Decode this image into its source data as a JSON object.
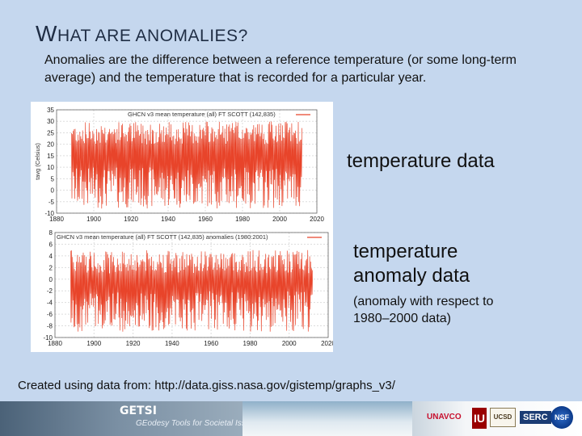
{
  "title": {
    "first_letter": "W",
    "rest": "HAT ARE ANOMALIES?"
  },
  "intro": "Anomalies are the difference between a reference temperature (or some long-term average) and the temperature that is recorded for a particular year.",
  "labels": {
    "temperature_data": "temperature data",
    "anomaly_line1": "temperature",
    "anomaly_line2": "anomaly data",
    "anomaly_note": "(anomaly with respect to 1980–2000 data)"
  },
  "credit": "Created using data from: http://data.giss.nasa.gov/gistemp/graphs_v3/",
  "footer": {
    "brand": "GETSI",
    "tagline": "GEodesy Tools for Societal Issues",
    "logos": [
      "UNAVCO",
      "IU",
      "UCSD",
      "SERC",
      "NSF"
    ]
  },
  "colors": {
    "background": "#c5d7ee",
    "series": "#e8442a",
    "title": "#1f2d44"
  },
  "chart_data": [
    {
      "type": "line",
      "title": "GHCN v3 mean temperature (all) FT SCOTT (142,835)",
      "ylabel": "tavg (Celsius)",
      "xlabel": "",
      "xlim": [
        1880,
        2020
      ],
      "ylim": [
        -10,
        35
      ],
      "xticks": [
        1880,
        1900,
        1920,
        1940,
        1960,
        1980,
        2000,
        2020
      ],
      "yticks": [
        -10,
        -5,
        0,
        5,
        10,
        15,
        20,
        25,
        30,
        35
      ],
      "grid": true,
      "series": [
        {
          "name": "",
          "x_range": [
            1888,
            2012
          ],
          "envelope_min": [
            -8,
            10
          ],
          "envelope_max": [
            20,
            30
          ]
        }
      ]
    },
    {
      "type": "line",
      "title": "GHCN v3 mean temperature (all) FT SCOTT (142,835) anomalies (1980:2001)",
      "ylabel": "",
      "xlabel": "",
      "xlim": [
        1880,
        2020
      ],
      "ylim": [
        -10,
        8
      ],
      "xticks": [
        1880,
        1900,
        1920,
        1940,
        1960,
        1980,
        2000,
        2020
      ],
      "yticks": [
        -10,
        -8,
        -6,
        -4,
        -2,
        0,
        2,
        4,
        6,
        8
      ],
      "grid": true,
      "series": [
        {
          "name": "",
          "x_range": [
            1888,
            2012
          ],
          "envelope_min": [
            -9,
            -2
          ],
          "envelope_max": [
            1,
            5
          ]
        }
      ]
    }
  ]
}
